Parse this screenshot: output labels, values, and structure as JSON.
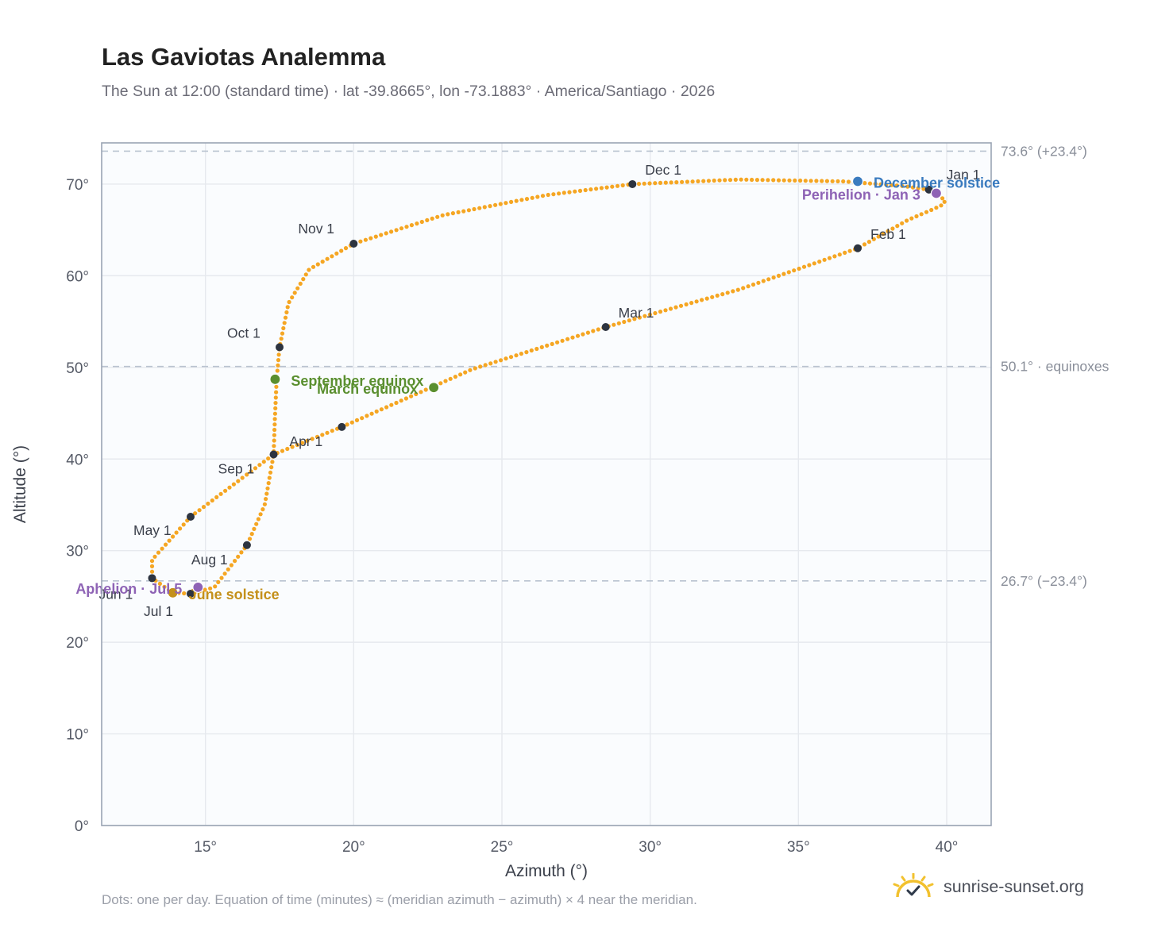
{
  "title": "Las Gaviotas Analemma",
  "subtitle": "The Sun at 12:00 (standard time) · lat -39.8665°, lon -73.1883° · America/Santiago · 2026",
  "footnote": "Dots: one per day. Equation of time (minutes) ≈ (meridian azimuth − azimuth) × 4 near the meridian.",
  "brand": {
    "name": "sunrise-sunset.org",
    "icon": "sun-check-icon"
  },
  "chart_data": {
    "type": "scatter",
    "xlabel": "Azimuth (°)",
    "ylabel": "Altitude (°)",
    "xlim": [
      11.5,
      41.5
    ],
    "ylim": [
      0,
      74.5
    ],
    "x_ticks": [
      {
        "value": 15,
        "label": "15°"
      },
      {
        "value": 20,
        "label": "20°"
      },
      {
        "value": 25,
        "label": "25°"
      },
      {
        "value": 30,
        "label": "30°"
      },
      {
        "value": 35,
        "label": "35°"
      },
      {
        "value": 40,
        "label": "40°"
      }
    ],
    "y_ticks": [
      {
        "value": 0,
        "label": "0°"
      },
      {
        "value": 10,
        "label": "10°"
      },
      {
        "value": 20,
        "label": "20°"
      },
      {
        "value": 30,
        "label": "30°"
      },
      {
        "value": 40,
        "label": "40°"
      },
      {
        "value": 50,
        "label": "50°"
      },
      {
        "value": 60,
        "label": "60°"
      },
      {
        "value": 70,
        "label": "70°"
      }
    ],
    "grid": true,
    "reference_lines": [
      {
        "altitude": 73.6,
        "label": "73.6° (+23.4°)"
      },
      {
        "altitude": 50.1,
        "label": "50.1° · equinoxes"
      },
      {
        "altitude": 26.7,
        "label": "26.7° (−23.4°)"
      }
    ],
    "daily_path": {
      "name": "Dots: one per day",
      "color": "#f5a623",
      "points": [
        [
          39.4,
          69.4
        ],
        [
          39.7,
          68.7
        ],
        [
          39.95,
          68.3
        ],
        [
          39.9,
          67.8
        ],
        [
          39.5,
          67.2
        ],
        [
          38.7,
          66.1
        ],
        [
          37.0,
          63.0
        ],
        [
          33.0,
          58.5
        ],
        [
          28.5,
          54.4
        ],
        [
          24.0,
          49.8
        ],
        [
          19.6,
          43.5
        ],
        [
          17.3,
          40.5
        ],
        [
          14.5,
          33.7
        ],
        [
          13.2,
          29.0
        ],
        [
          13.2,
          27.0
        ],
        [
          13.9,
          25.4
        ],
        [
          14.5,
          25.3
        ],
        [
          15.3,
          26.0
        ],
        [
          16.4,
          30.6
        ],
        [
          17.0,
          35.0
        ],
        [
          17.3,
          40.5
        ],
        [
          17.35,
          45.0
        ],
        [
          17.4,
          48.7
        ],
        [
          17.5,
          52.2
        ],
        [
          17.8,
          57.0
        ],
        [
          18.5,
          60.7
        ],
        [
          20.0,
          63.5
        ],
        [
          23.0,
          66.6
        ],
        [
          26.5,
          68.8
        ],
        [
          29.4,
          70.0
        ],
        [
          33.0,
          70.5
        ],
        [
          36.5,
          70.3
        ],
        [
          38.5,
          69.8
        ],
        [
          39.4,
          69.4
        ]
      ]
    },
    "month_markers": [
      {
        "label": "Jan 1",
        "az": 39.4,
        "alt": 69.4,
        "dx": 22,
        "dy": -13,
        "anchor": "start"
      },
      {
        "label": "Feb 1",
        "az": 37.0,
        "alt": 63.0,
        "dx": 16,
        "dy": -12,
        "anchor": "start"
      },
      {
        "label": "Mar 1",
        "az": 28.5,
        "alt": 54.4,
        "dx": 16,
        "dy": -12,
        "anchor": "start"
      },
      {
        "label": "Apr 1",
        "az": 19.6,
        "alt": 43.5,
        "dx": -66,
        "dy": 24,
        "anchor": "start"
      },
      {
        "label": "May 1",
        "az": 14.5,
        "alt": 33.7,
        "dx": -72,
        "dy": 23,
        "anchor": "start"
      },
      {
        "label": "Jun 1",
        "az": 13.2,
        "alt": 27.0,
        "dx": -67,
        "dy": 26,
        "anchor": "start"
      },
      {
        "label": "Jul 1",
        "az": 14.5,
        "alt": 25.3,
        "dx": -59,
        "dy": 28,
        "anchor": "start"
      },
      {
        "label": "Aug 1",
        "az": 16.4,
        "alt": 30.6,
        "dx": -70,
        "dy": 24,
        "anchor": "start"
      },
      {
        "label": "Sep 1",
        "az": 17.3,
        "alt": 40.5,
        "dx": -70,
        "dy": 24,
        "anchor": "start"
      },
      {
        "label": "Oct 1",
        "az": 17.5,
        "alt": 52.2,
        "dx": -66,
        "dy": -12,
        "anchor": "start"
      },
      {
        "label": "Nov 1",
        "az": 20.0,
        "alt": 63.5,
        "dx": -70,
        "dy": -13,
        "anchor": "start"
      },
      {
        "label": "Dec 1",
        "az": 29.4,
        "alt": 70.0,
        "dx": 16,
        "dy": -12,
        "anchor": "start"
      }
    ],
    "events": [
      {
        "label": "December solstice",
        "az": 37.0,
        "alt": 70.3,
        "color": "#3a7bbf",
        "dx": 20,
        "dy": 8,
        "anchor": "start"
      },
      {
        "label": "Perihelion · Jan 3",
        "az": 39.65,
        "alt": 69.0,
        "color": "#8e63b5",
        "dx": -20,
        "dy": 8,
        "anchor": "end"
      },
      {
        "label": "March equinox",
        "az": 22.7,
        "alt": 47.8,
        "color": "#5a8f2f",
        "dx": -20,
        "dy": 8,
        "anchor": "end"
      },
      {
        "label": "September equinox",
        "az": 17.35,
        "alt": 48.7,
        "color": "#5a8f2f",
        "dx": 20,
        "dy": 8,
        "anchor": "start"
      },
      {
        "label": "June solstice",
        "az": 13.9,
        "alt": 25.4,
        "color": "#c4901a",
        "dx": 20,
        "dy": 8,
        "anchor": "start"
      },
      {
        "label": "Aphelion · Jul 5",
        "az": 14.75,
        "alt": 26.0,
        "color": "#8e63b5",
        "dx": -20,
        "dy": 8,
        "anchor": "end"
      }
    ]
  }
}
